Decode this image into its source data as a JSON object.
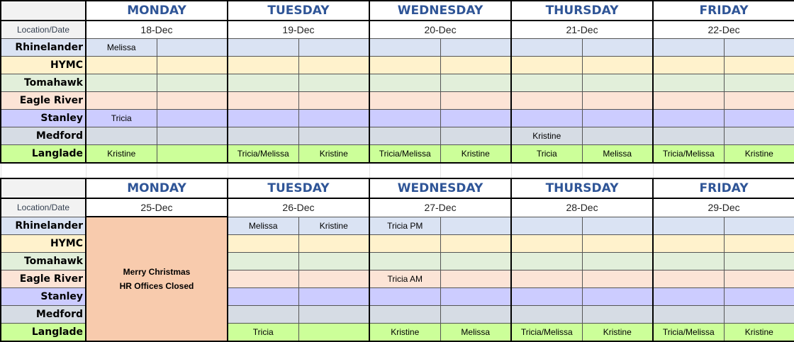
{
  "location_header": "Location/Date",
  "locations": [
    {
      "name": "Rhinelander",
      "color": "#dae3f3"
    },
    {
      "name": "HYMC",
      "color": "#fff2cc"
    },
    {
      "name": "Tomahawk",
      "color": "#e2efda"
    },
    {
      "name": "Eagle River",
      "color": "#fce4d6"
    },
    {
      "name": "Stanley",
      "color": "#ccccff"
    },
    {
      "name": "Medford",
      "color": "#d6dce4"
    },
    {
      "name": "Langlade",
      "color": "#ccff99"
    }
  ],
  "weeks": [
    {
      "days": [
        {
          "name": "MONDAY",
          "date": "18-Dec"
        },
        {
          "name": "TUESDAY",
          "date": "19-Dec"
        },
        {
          "name": "WEDNESDAY",
          "date": "20-Dec"
        },
        {
          "name": "THURSDAY",
          "date": "21-Dec"
        },
        {
          "name": "FRIDAY",
          "date": "22-Dec"
        }
      ],
      "closed_day": null,
      "cells": [
        [
          "Melissa",
          "",
          "",
          "",
          "",
          "",
          "",
          "",
          "",
          ""
        ],
        [
          "",
          "",
          "",
          "",
          "",
          "",
          "",
          "",
          "",
          ""
        ],
        [
          "",
          "",
          "",
          "",
          "",
          "",
          "",
          "",
          "",
          ""
        ],
        [
          "",
          "",
          "",
          "",
          "",
          "",
          "",
          "",
          "",
          ""
        ],
        [
          "Tricia",
          "",
          "",
          "",
          "",
          "",
          "",
          "",
          "",
          ""
        ],
        [
          "",
          "",
          "",
          "",
          "",
          "",
          "Kristine",
          "",
          "",
          ""
        ],
        [
          "Kristine",
          "",
          "Tricia/Melissa",
          "Kristine",
          "Tricia/Melissa",
          "Kristine",
          "Tricia",
          "Melissa",
          "Tricia/Melissa",
          "Kristine"
        ]
      ]
    },
    {
      "days": [
        {
          "name": "MONDAY",
          "date": "25-Dec"
        },
        {
          "name": "TUESDAY",
          "date": "26-Dec"
        },
        {
          "name": "WEDNESDAY",
          "date": "27-Dec"
        },
        {
          "name": "THURSDAY",
          "date": "28-Dec"
        },
        {
          "name": "FRIDAY",
          "date": "29-Dec"
        }
      ],
      "closed_day": {
        "index": 0,
        "line1": "Merry Christmas",
        "line2": "HR Offices Closed",
        "color": "#f8cbad"
      },
      "cells": [
        [
          "",
          "",
          "Melissa",
          "Kristine",
          "Tricia PM",
          "",
          "",
          "",
          "",
          ""
        ],
        [
          "",
          "",
          "",
          "",
          "",
          "",
          "",
          "",
          "",
          ""
        ],
        [
          "",
          "",
          "",
          "",
          "",
          "",
          "",
          "",
          "",
          ""
        ],
        [
          "",
          "",
          "",
          "",
          "Tricia AM",
          "",
          "",
          "",
          "",
          ""
        ],
        [
          "",
          "",
          "",
          "",
          "",
          "",
          "",
          "",
          "",
          ""
        ],
        [
          "",
          "",
          "",
          "",
          "",
          "",
          "",
          "",
          "",
          ""
        ],
        [
          "",
          "",
          "Tricia",
          "",
          "Kristine",
          "Melissa",
          "Tricia/Melissa",
          "Kristine",
          "Tricia/Melissa",
          "Kristine"
        ]
      ]
    }
  ]
}
